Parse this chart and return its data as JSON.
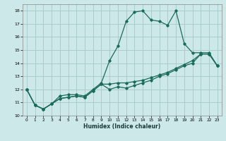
{
  "xlabel": "Humidex (Indice chaleur)",
  "ylabel": "",
  "bg_color": "#cce8e8",
  "grid_color": "#aacccc",
  "line_color": "#1a6b5a",
  "xlim": [
    -0.5,
    23.5
  ],
  "ylim": [
    10,
    18.5
  ],
  "yticks": [
    10,
    11,
    12,
    13,
    14,
    15,
    16,
    17,
    18
  ],
  "xticks": [
    0,
    1,
    2,
    3,
    4,
    5,
    6,
    7,
    8,
    9,
    10,
    11,
    12,
    13,
    14,
    15,
    16,
    17,
    18,
    19,
    20,
    21,
    22,
    23
  ],
  "series1_x": [
    0,
    1,
    2,
    3,
    4,
    5,
    6,
    7,
    8,
    9,
    10,
    11,
    12,
    13,
    14,
    15,
    16,
    17,
    18,
    19,
    20,
    21,
    22,
    23
  ],
  "series1_y": [
    12.0,
    10.8,
    10.5,
    10.9,
    11.5,
    11.6,
    11.6,
    11.5,
    12.0,
    12.5,
    14.2,
    15.3,
    17.2,
    17.9,
    18.0,
    17.3,
    17.2,
    16.9,
    18.0,
    15.5,
    14.8,
    14.8,
    14.8,
    13.8
  ],
  "series2_x": [
    0,
    1,
    2,
    3,
    4,
    5,
    6,
    7,
    8,
    9,
    10,
    11,
    12,
    13,
    14,
    15,
    16,
    17,
    18,
    19,
    20,
    21,
    22,
    23
  ],
  "series2_y": [
    12.0,
    10.8,
    10.5,
    10.9,
    11.3,
    11.4,
    11.5,
    11.4,
    11.9,
    12.4,
    12.0,
    12.2,
    12.1,
    12.3,
    12.5,
    12.7,
    13.0,
    13.2,
    13.5,
    13.8,
    14.0,
    14.7,
    14.7,
    13.8
  ],
  "series3_x": [
    0,
    1,
    2,
    3,
    4,
    5,
    6,
    7,
    8,
    9,
    10,
    11,
    12,
    13,
    14,
    15,
    16,
    17,
    18,
    19,
    20,
    21,
    22,
    23
  ],
  "series3_y": [
    12.0,
    10.8,
    10.5,
    10.9,
    11.3,
    11.4,
    11.5,
    11.4,
    11.9,
    12.4,
    12.4,
    12.5,
    12.5,
    12.6,
    12.7,
    12.9,
    13.1,
    13.3,
    13.6,
    13.9,
    14.2,
    14.7,
    14.7,
    13.8
  ]
}
